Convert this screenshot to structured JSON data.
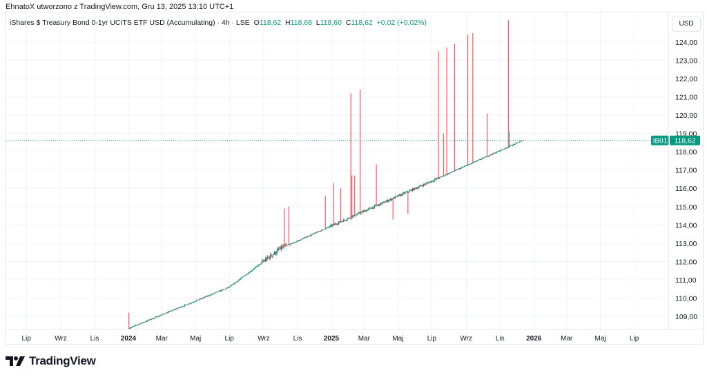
{
  "header": {
    "attribution": "EhnatoX utworzono z TradingView.com, Gru 13, 2025 13:10 UTC+1"
  },
  "legend": {
    "title": "iShares $ Treasury Bond 0-1yr UCITS ETF USD (Accumulating) · 4h · LSE",
    "o_label": "O",
    "o": "118,62",
    "h_label": "H",
    "h": "118,68",
    "l_label": "L",
    "l": "118,60",
    "c_label": "C",
    "c": "118,62",
    "change": "+0,02 (+0,02%)"
  },
  "currency": "USD",
  "last_price": {
    "ticker": "IB01",
    "value": "118,62"
  },
  "logo": "TradingView",
  "colors": {
    "up": "#089981",
    "down": "#f23645"
  },
  "chart_data": {
    "type": "candlestick",
    "title": "iShares $ Treasury Bond 0-1yr UCITS ETF USD (Accumulating)",
    "interval": "4h",
    "ylim": [
      108.2,
      125.4
    ],
    "y_ticks": [
      109,
      110,
      111,
      112,
      113,
      114,
      115,
      116,
      117,
      118,
      119,
      120,
      121,
      122,
      123,
      124
    ],
    "y_tick_labels": [
      "109,00",
      "110,00",
      "111,00",
      "112,00",
      "113,00",
      "114,00",
      "115,00",
      "116,00",
      "117,00",
      "118,00",
      "119,00",
      "120,00",
      "121,00",
      "122,00",
      "123,00",
      "124,00"
    ],
    "x_ticks": [
      {
        "date": "2023-07-01",
        "label": "Lip",
        "bold": false
      },
      {
        "date": "2023-09-01",
        "label": "Wrz",
        "bold": false
      },
      {
        "date": "2023-11-01",
        "label": "Lis",
        "bold": false
      },
      {
        "date": "2024-01-01",
        "label": "2024",
        "bold": true
      },
      {
        "date": "2024-03-01",
        "label": "Mar",
        "bold": false
      },
      {
        "date": "2024-05-01",
        "label": "Maj",
        "bold": false
      },
      {
        "date": "2024-07-01",
        "label": "Lip",
        "bold": false
      },
      {
        "date": "2024-09-01",
        "label": "Wrz",
        "bold": false
      },
      {
        "date": "2024-11-01",
        "label": "Lis",
        "bold": false
      },
      {
        "date": "2025-01-01",
        "label": "2025",
        "bold": true
      },
      {
        "date": "2025-03-01",
        "label": "Mar",
        "bold": false
      },
      {
        "date": "2025-05-01",
        "label": "Maj",
        "bold": false
      },
      {
        "date": "2025-07-01",
        "label": "Lip",
        "bold": false
      },
      {
        "date": "2025-09-01",
        "label": "Wrz",
        "bold": false
      },
      {
        "date": "2025-11-01",
        "label": "Lis",
        "bold": false
      },
      {
        "date": "2026-01-01",
        "label": "2026",
        "bold": true
      },
      {
        "date": "2026-03-01",
        "label": "Mar",
        "bold": false
      },
      {
        "date": "2026-05-01",
        "label": "Maj",
        "bold": false
      },
      {
        "date": "2026-07-01",
        "label": "Lip",
        "bold": false
      }
    ],
    "trend": [
      {
        "date": "2024-01-02",
        "close": 108.35
      },
      {
        "date": "2024-07-01",
        "close": 110.6
      },
      {
        "date": "2024-10-01",
        "close": 112.7
      },
      {
        "date": "2025-01-01",
        "close": 113.95
      },
      {
        "date": "2025-07-01",
        "close": 116.4
      },
      {
        "date": "2025-12-12",
        "close": 118.62
      }
    ],
    "spikes": [
      {
        "date": "2024-01-02",
        "high": 109.2,
        "dir": "down"
      },
      {
        "date": "2024-10-08",
        "high": 114.9,
        "dir": "down"
      },
      {
        "date": "2024-10-16",
        "high": 115.0,
        "dir": "down"
      },
      {
        "date": "2024-12-21",
        "high": 115.6,
        "dir": "down"
      },
      {
        "date": "2025-01-05",
        "high": 116.3,
        "dir": "down"
      },
      {
        "date": "2025-01-18",
        "high": 116.0,
        "dir": "down"
      },
      {
        "date": "2025-02-05",
        "high": 121.2,
        "dir": "down"
      },
      {
        "date": "2025-02-07",
        "high": 116.7,
        "dir": "down"
      },
      {
        "date": "2025-02-12",
        "high": 116.7,
        "dir": "down"
      },
      {
        "date": "2025-02-22",
        "high": 121.4,
        "dir": "down"
      },
      {
        "date": "2025-03-23",
        "high": 117.3,
        "dir": "down"
      },
      {
        "date": "2025-07-13",
        "high": 123.5,
        "dir": "down"
      },
      {
        "date": "2025-07-22",
        "high": 119.0,
        "dir": "down"
      },
      {
        "date": "2025-07-28",
        "high": 123.7,
        "dir": "down"
      },
      {
        "date": "2025-08-11",
        "high": 123.9,
        "dir": "down"
      },
      {
        "date": "2025-09-04",
        "high": 124.4,
        "dir": "down"
      },
      {
        "date": "2025-09-13",
        "high": 124.5,
        "dir": "down"
      },
      {
        "date": "2025-10-09",
        "high": 120.1,
        "dir": "down"
      },
      {
        "date": "2025-11-16",
        "high": 125.2,
        "dir": "down"
      },
      {
        "date": "2025-11-18",
        "high": 119.1,
        "dir": "up"
      }
    ],
    "low_spikes": [
      {
        "date": "2025-04-22",
        "low": 114.3
      },
      {
        "date": "2025-05-19",
        "low": 114.6
      }
    ],
    "last_value": 118.62
  }
}
